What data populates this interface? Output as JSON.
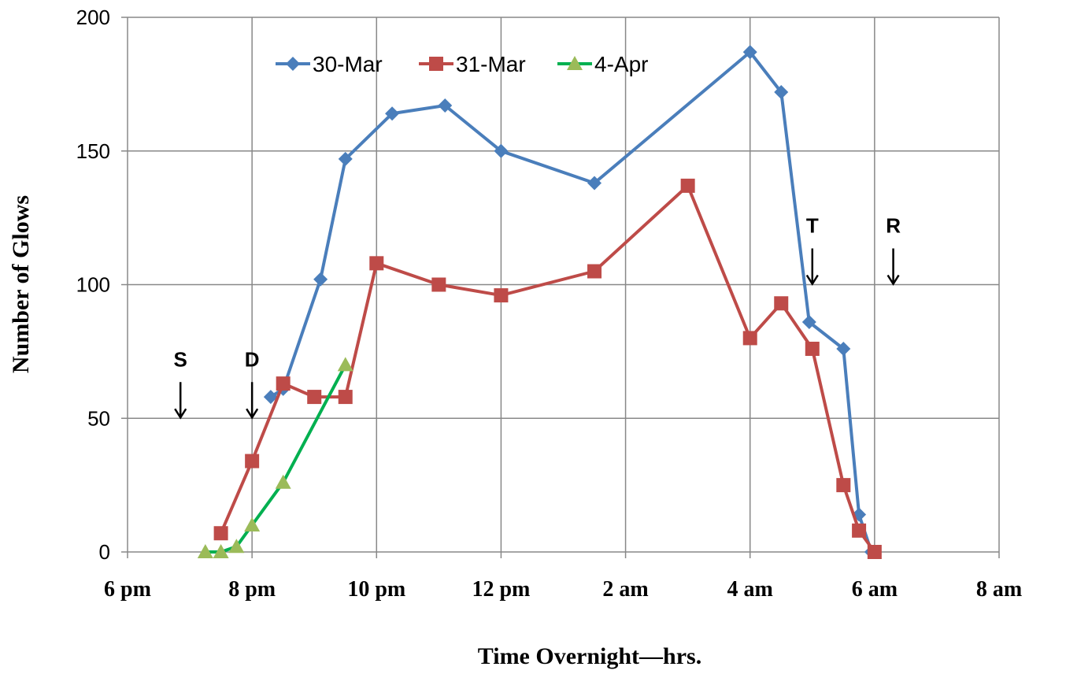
{
  "chart_data": {
    "type": "line",
    "title": "",
    "xlabel": "Time Overnight—hrs.",
    "ylabel": "Number of Glows",
    "xlim": [
      18,
      32
    ],
    "ylim": [
      0,
      200
    ],
    "y_ticks": [
      0,
      50,
      100,
      150,
      200
    ],
    "x_ticks": [
      {
        "value": 18,
        "label": "6 pm"
      },
      {
        "value": 20,
        "label": "8 pm"
      },
      {
        "value": 22,
        "label": "10 pm"
      },
      {
        "value": 24,
        "label": "12 pm"
      },
      {
        "value": 26,
        "label": "2 am"
      },
      {
        "value": 28,
        "label": "4 am"
      },
      {
        "value": 30,
        "label": "6 am"
      },
      {
        "value": 32,
        "label": "8 am"
      }
    ],
    "grid": true,
    "legend_position": "top-left",
    "series": [
      {
        "name": "30-Mar",
        "color": "#4a7ebb",
        "marker": "diamond",
        "points": [
          [
            20.3,
            58
          ],
          [
            20.5,
            61
          ],
          [
            21.1,
            102
          ],
          [
            21.5,
            147
          ],
          [
            22.25,
            164
          ],
          [
            23.1,
            167
          ],
          [
            24.0,
            150
          ],
          [
            25.5,
            138
          ],
          [
            28.0,
            187
          ],
          [
            28.5,
            172
          ],
          [
            28.95,
            86
          ],
          [
            29.5,
            76
          ],
          [
            29.75,
            14
          ],
          [
            29.95,
            0
          ]
        ]
      },
      {
        "name": "31-Mar",
        "color": "#be4b48",
        "marker": "square",
        "points": [
          [
            19.5,
            7
          ],
          [
            20.0,
            34
          ],
          [
            20.5,
            63
          ],
          [
            21.0,
            58
          ],
          [
            21.5,
            58
          ],
          [
            22.0,
            108
          ],
          [
            23.0,
            100
          ],
          [
            24.0,
            96
          ],
          [
            25.5,
            105
          ],
          [
            27.0,
            137
          ],
          [
            28.0,
            80
          ],
          [
            28.5,
            93
          ],
          [
            29.0,
            76
          ],
          [
            29.5,
            25
          ],
          [
            29.75,
            8
          ],
          [
            30.0,
            0
          ]
        ]
      },
      {
        "name": "4-Apr",
        "color": "#00b050",
        "marker_color": "#9bbb59",
        "marker": "triangle",
        "points": [
          [
            19.25,
            0
          ],
          [
            19.5,
            0
          ],
          [
            19.75,
            2
          ],
          [
            20.0,
            10
          ],
          [
            20.5,
            26
          ],
          [
            21.5,
            70
          ]
        ]
      }
    ],
    "annotations": [
      {
        "label": "S",
        "x": 18.85,
        "y": 50
      },
      {
        "label": "D",
        "x": 20.0,
        "y": 50
      },
      {
        "label": "T",
        "x": 29.0,
        "y": 100
      },
      {
        "label": "R",
        "x": 30.3,
        "y": 100
      }
    ]
  }
}
